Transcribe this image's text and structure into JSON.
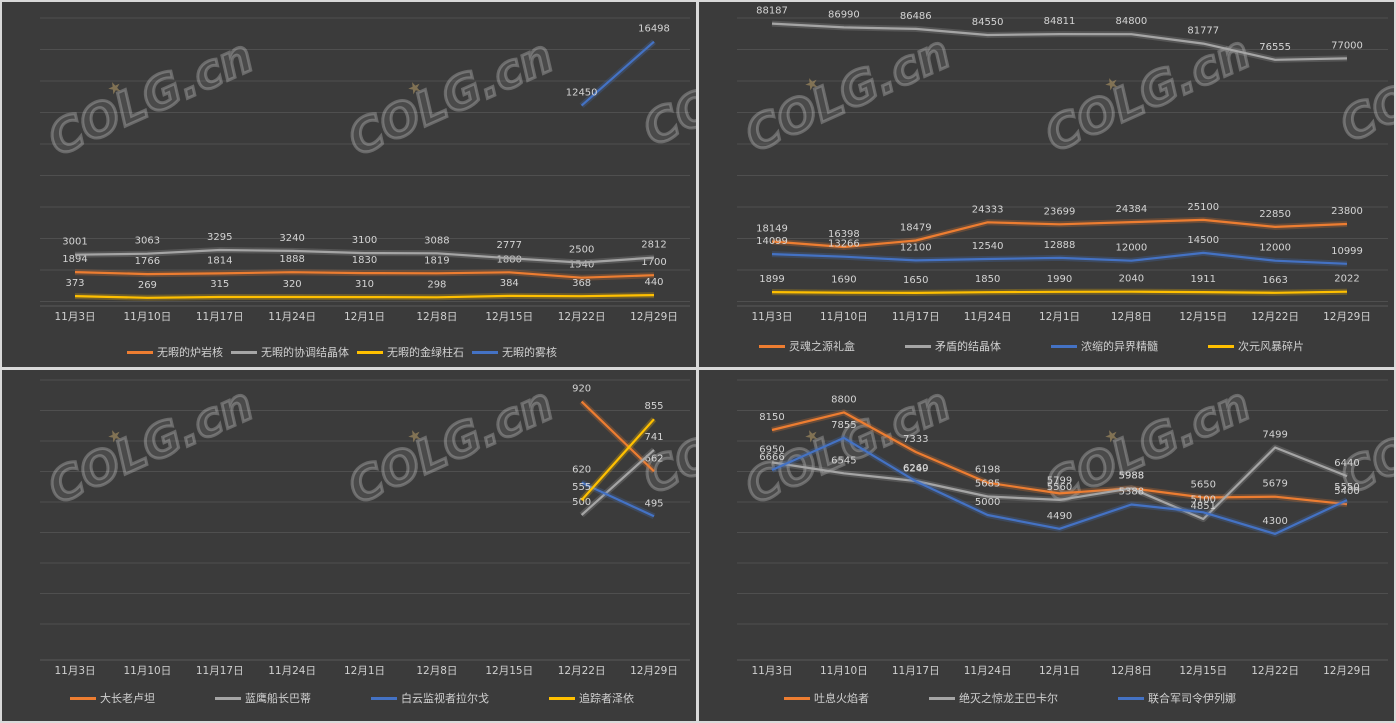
{
  "chart_data": [
    {
      "type": "line",
      "panel": "top-left",
      "categories": [
        "11月3日",
        "11月10日",
        "11月17日",
        "11月24日",
        "12月1日",
        "12月8日",
        "12月15日",
        "12月22日",
        "12月29日"
      ],
      "ylim": [
        0,
        18000
      ],
      "grid": true,
      "legend": "bottom",
      "series": [
        {
          "name": "无暇的炉岩核",
          "color": "#ed7d31",
          "values": [
            1894,
            1766,
            1814,
            1888,
            1830,
            1819,
            1880,
            1540,
            1700
          ],
          "labels": [
            "1894",
            "1766",
            "1814",
            "1888",
            "1830",
            "1819",
            "1880",
            "1540",
            "1700"
          ]
        },
        {
          "name": "无暇的协调结晶体",
          "color": "#a5a5a5",
          "values": [
            3001,
            3063,
            3295,
            3240,
            3100,
            3088,
            2777,
            2500,
            2812
          ],
          "labels": [
            "3001",
            "3063",
            "3295",
            "3240",
            "3100",
            "3088",
            "2777",
            "2500",
            "2812"
          ]
        },
        {
          "name": "无暇的金绿柱石",
          "color": "#ffc000",
          "values": [
            373,
            269,
            315,
            320,
            310,
            298,
            384,
            368,
            440
          ],
          "labels": [
            "373",
            "269",
            "315",
            "320",
            "310",
            "298",
            "384",
            "368",
            "440"
          ]
        },
        {
          "name": "无暇的雾核",
          "color": "#4472c4",
          "values": [
            null,
            null,
            null,
            null,
            null,
            null,
            null,
            12450,
            16498
          ],
          "labels": [
            "",
            "",
            "",
            "",
            "",
            "",
            "",
            "12450",
            "16498"
          ]
        }
      ]
    },
    {
      "type": "line",
      "panel": "top-right",
      "categories": [
        "11月3日",
        "11月10日",
        "11月17日",
        "11月24日",
        "12月1日",
        "12月8日",
        "12月15日",
        "12月22日",
        "12月29日"
      ],
      "ylim": [
        0,
        90000
      ],
      "grid": true,
      "legend": "bottom",
      "series": [
        {
          "name": "灵魂之源礼盒",
          "color": "#ed7d31",
          "values": [
            18149,
            16398,
            18479,
            24333,
            23699,
            24384,
            25100,
            22850,
            23800
          ],
          "labels": [
            "18149",
            "16398",
            "18479",
            "24333",
            "23699",
            "24384",
            "25100",
            "22850",
            "23800"
          ]
        },
        {
          "name": "矛盾的结晶体",
          "color": "#a5a5a5",
          "values": [
            88187,
            86990,
            86486,
            84550,
            84811,
            84800,
            81777,
            76555,
            77000
          ],
          "labels": [
            "88187",
            "86990",
            "86486",
            "84550",
            "84811",
            "84800",
            "81777",
            "76555",
            "77000"
          ]
        },
        {
          "name": "浓缩的异界精髓",
          "color": "#4472c4",
          "values": [
            14099,
            13266,
            12100,
            12540,
            12888,
            12000,
            14500,
            12000,
            10999
          ],
          "labels": [
            "14099",
            "13266",
            "12100",
            "12540",
            "12888",
            "12000",
            "14500",
            "12000",
            "10999"
          ]
        },
        {
          "name": "次元风暴碎片",
          "color": "#ffc000",
          "values": [
            1899,
            1690,
            1650,
            1850,
            1990,
            2040,
            1911,
            1663,
            2022
          ],
          "labels": [
            "1899",
            "1690",
            "1650",
            "1850",
            "1990",
            "2040",
            "1911",
            "1663",
            "2022"
          ]
        }
      ]
    },
    {
      "type": "line",
      "panel": "bottom-left",
      "categories": [
        "11月3日",
        "11月10日",
        "11月17日",
        "11月24日",
        "12月1日",
        "12月8日",
        "12月15日",
        "12月22日",
        "12月29日"
      ],
      "ylim": [
        0,
        1000
      ],
      "grid": true,
      "legend": "bottom",
      "series": [
        {
          "name": "大长老卢坦",
          "color": "#ed7d31",
          "values": [
            null,
            null,
            null,
            null,
            null,
            null,
            null,
            920,
            662
          ],
          "labels": [
            "",
            "",
            "",
            "",
            "",
            "",
            "",
            "920",
            "662"
          ]
        },
        {
          "name": "蓝鹰船长巴蒂",
          "color": "#a5a5a5",
          "values": [
            null,
            null,
            null,
            null,
            null,
            null,
            null,
            500,
            741
          ],
          "labels": [
            "",
            "",
            "",
            "",
            "",
            "",
            "",
            "500",
            "741"
          ]
        },
        {
          "name": "白云监视者拉尔戈",
          "color": "#4472c4",
          "values": [
            null,
            null,
            null,
            null,
            null,
            null,
            null,
            620,
            495
          ],
          "labels": [
            "",
            "",
            "",
            "",
            "",
            "",
            "",
            "620",
            "495"
          ]
        },
        {
          "name": "追踪者泽依",
          "color": "#ffc000",
          "values": [
            null,
            null,
            null,
            null,
            null,
            null,
            null,
            555,
            855
          ],
          "labels": [
            "",
            "",
            "",
            "",
            "",
            "",
            "",
            "555",
            "855"
          ]
        }
      ]
    },
    {
      "type": "line",
      "panel": "bottom-right",
      "categories": [
        "11月3日",
        "11月10日",
        "11月17日",
        "11月24日",
        "12月1日",
        "12月8日",
        "12月15日",
        "12月22日",
        "12月29日"
      ],
      "ylim": [
        0,
        10000
      ],
      "grid": true,
      "legend": "bottom",
      "series": [
        {
          "name": "吐息火焰者",
          "color": "#ed7d31",
          "values": [
            8150,
            8800,
            7333,
            6198,
            5799,
            5988,
            5650,
            5679,
            5400
          ],
          "labels": [
            "8150",
            "8800",
            "7333",
            "6198",
            "5799",
            "5988",
            "5650",
            "5679",
            "5400"
          ]
        },
        {
          "name": "绝灭之惊龙王巴卡尔",
          "color": "#a5a5a5",
          "values": [
            6950,
            6545,
            6260,
            5685,
            5560,
            5988,
            4851,
            7499,
            6440
          ],
          "labels": [
            "6950",
            "6545",
            "6260",
            "5685",
            "5560",
            "5988",
            "4851",
            "7499",
            "6440"
          ]
        },
        {
          "name": "联合军司令伊列娜",
          "color": "#4472c4",
          "values": [
            6666,
            7855,
            6249,
            5000,
            4490,
            5388,
            5100,
            4300,
            5550
          ],
          "labels": [
            "6666",
            "7855",
            "6249",
            "5000",
            "4490",
            "5388",
            "5100",
            "4300",
            "5550"
          ]
        }
      ]
    }
  ],
  "watermark": {
    "text": "COLG.cn",
    "icon": "star-icon"
  }
}
